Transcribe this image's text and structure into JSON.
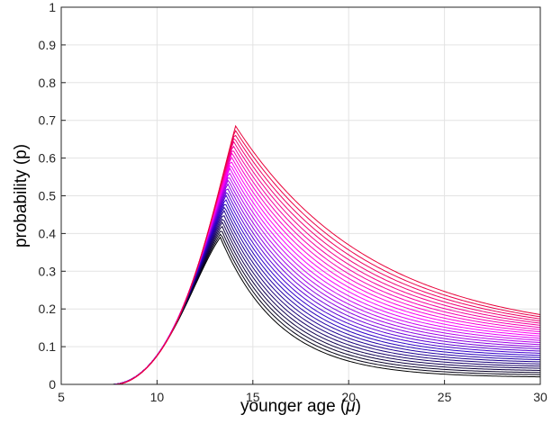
{
  "chart_data": {
    "type": "line",
    "title": "",
    "xlabel": "younger age (",
    "xlabel_symbol": "μ",
    "xlabel_close": ")",
    "ylabel": "probability (p)",
    "xlim": [
      5,
      30
    ],
    "ylim": [
      0,
      1
    ],
    "xticks": [
      5,
      10,
      15,
      20,
      25,
      30
    ],
    "yticks": [
      0,
      0.1,
      0.2,
      0.3,
      0.4,
      0.5,
      0.6,
      0.7,
      0.8,
      0.9,
      1
    ],
    "xtick_labels": [
      "5",
      "10",
      "15",
      "20",
      "25",
      "30"
    ],
    "ytick_labels": [
      "0",
      "0.1",
      "0.2",
      "0.3",
      "0.4",
      "0.5",
      "0.6",
      "0.7",
      "0.8",
      "0.9",
      "1"
    ],
    "grid": true,
    "legend": "none",
    "series_count": 30,
    "color_gradient": [
      "#000000",
      "#2a00c8",
      "#ff00ff",
      "#e8003a"
    ],
    "family": {
      "onset_x": 7.6,
      "peak_x_range": [
        13.3,
        14.1
      ],
      "peak_y_range": [
        0.39,
        0.685
      ],
      "end_y_at_30_range": [
        0.02,
        0.185
      ]
    },
    "series_key_points": [
      {
        "x": [
          5,
          7.6,
          10,
          12,
          13.3,
          17.8,
          30
        ],
        "y": [
          0,
          0,
          0.155,
          0.352,
          0.39,
          0.25,
          0.02
        ]
      },
      {
        "x": [
          5,
          7.7,
          10,
          12,
          13.8,
          17.8,
          30
        ],
        "y": [
          0,
          0,
          0.08,
          0.52,
          0.685,
          0.44,
          0.185
        ]
      }
    ]
  }
}
